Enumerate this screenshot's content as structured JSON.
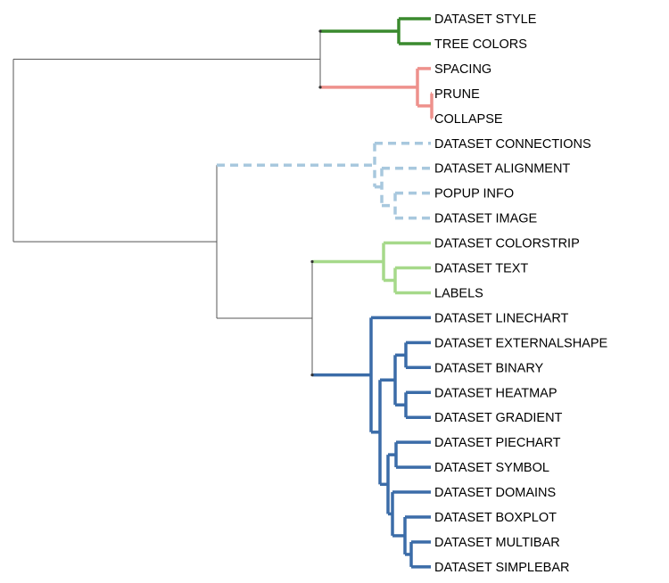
{
  "colors": {
    "backbone": "#555555",
    "clade_style": "#3a8a2e",
    "clade_prune": "#ee918c",
    "clade_dataset_misc": "#a8c8de",
    "clade_colorstrip": "#a6d98a",
    "clade_charts": "#3b6ca8"
  },
  "leaves": [
    {
      "label": "DATASET STYLE",
      "clade": "clade_style"
    },
    {
      "label": "TREE COLORS",
      "clade": "clade_style"
    },
    {
      "label": "SPACING",
      "clade": "clade_prune"
    },
    {
      "label": "PRUNE",
      "clade": "clade_prune"
    },
    {
      "label": "COLLAPSE",
      "clade": "clade_prune"
    },
    {
      "label": "DATASET CONNECTIONS",
      "clade": "clade_dataset_misc"
    },
    {
      "label": "DATASET ALIGNMENT",
      "clade": "clade_dataset_misc"
    },
    {
      "label": "POPUP INFO",
      "clade": "clade_dataset_misc"
    },
    {
      "label": "DATASET IMAGE",
      "clade": "clade_dataset_misc"
    },
    {
      "label": "DATASET COLORSTRIP",
      "clade": "clade_colorstrip"
    },
    {
      "label": "DATASET TEXT",
      "clade": "clade_colorstrip"
    },
    {
      "label": "LABELS",
      "clade": "clade_colorstrip"
    },
    {
      "label": "DATASET LINECHART",
      "clade": "clade_charts"
    },
    {
      "label": "DATASET EXTERNALSHAPE",
      "clade": "clade_charts"
    },
    {
      "label": "DATASET BINARY",
      "clade": "clade_charts"
    },
    {
      "label": "DATASET HEATMAP",
      "clade": "clade_charts"
    },
    {
      "label": "DATASET GRADIENT",
      "clade": "clade_charts"
    },
    {
      "label": "DATASET PIECHART",
      "clade": "clade_charts"
    },
    {
      "label": "DATASET SYMBOL",
      "clade": "clade_charts"
    },
    {
      "label": "DATASET DOMAINS",
      "clade": "clade_charts"
    },
    {
      "label": "DATASET BOXPLOT",
      "clade": "clade_charts"
    },
    {
      "label": "DATASET MULTIBAR",
      "clade": "clade_charts"
    },
    {
      "label": "DATASET SIMPLEBAR",
      "clade": "clade_charts"
    }
  ]
}
